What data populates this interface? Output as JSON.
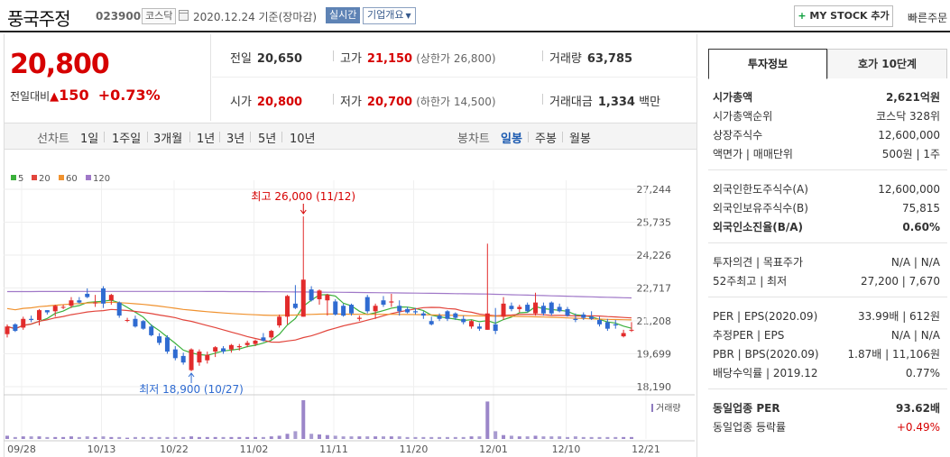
{
  "header": {
    "name": "풍국주정",
    "code": "023900",
    "market": "코스닥",
    "date": "2020.12.24 기준(장마감)",
    "realtime_label": "실시간",
    "company_label": "기업개요",
    "mystock_label": "MY STOCK 추가",
    "quick_order_label": "빠른주문"
  },
  "quote": {
    "price": "20,800",
    "change_label": "전일대비",
    "change": "150",
    "change_pct": "+0.73%",
    "prev_label": "전일",
    "prev": "20,650",
    "high_label": "고가",
    "high": "21,150",
    "upper_limit": "(상한가 26,800)",
    "volume_label": "거래량",
    "volume": "63,785",
    "open_label": "시가",
    "open": "20,800",
    "low_label": "저가",
    "low": "20,700",
    "lower_limit": "(하한가 14,500)",
    "amount_label": "거래대금",
    "amount": "1,334",
    "amount_unit": "백만"
  },
  "periods": {
    "line_label": "선차트",
    "items": [
      "1일",
      "1주일",
      "3개월",
      "1년",
      "3년",
      "5년",
      "10년"
    ],
    "candle_label": "봉차트",
    "candle_items": [
      "일봉",
      "주봉",
      "월봉"
    ],
    "active_candle": "일봉"
  },
  "chart_data": {
    "type": "candlestick",
    "legend": [
      "5",
      "20",
      "60",
      "120"
    ],
    "legend_colors": [
      "#3bb03b",
      "#e2453c",
      "#f0922f",
      "#a078c8"
    ],
    "y_ticks": [
      "27,244",
      "25,735",
      "24,226",
      "22,717",
      "21,208",
      "19,699",
      "18,190"
    ],
    "ylim": [
      18190,
      27244
    ],
    "x_ticks": [
      "09/28",
      "10/13",
      "10/22",
      "11/02",
      "11/11",
      "11/20",
      "12/01",
      "12/10",
      "12/21"
    ],
    "max_annotation": "최고 26,000 (11/12)",
    "min_annotation": "최저 18,900 (10/27)",
    "volume_label": "거래량",
    "up_color": "#e22b2b",
    "down_color": "#2f6bd1",
    "candles": [
      [
        20600,
        21050,
        20450,
        20950
      ],
      [
        21050,
        21100,
        20700,
        20750
      ],
      [
        20900,
        21400,
        20800,
        21300
      ],
      [
        21300,
        21450,
        21150,
        21250
      ],
      [
        21250,
        21750,
        21000,
        21700
      ],
      [
        21700,
        21700,
        21500,
        21600
      ],
      [
        21650,
        21950,
        21400,
        21900
      ],
      [
        21850,
        21950,
        21750,
        21850
      ],
      [
        21900,
        22300,
        21800,
        22150
      ],
      [
        22150,
        22300,
        22000,
        22050
      ],
      [
        22450,
        22700,
        22250,
        22300
      ],
      [
        22050,
        22400,
        21850,
        22050
      ],
      [
        22700,
        22800,
        21800,
        22000
      ],
      [
        22150,
        22450,
        21950,
        22400
      ],
      [
        22050,
        22100,
        21350,
        21450
      ],
      [
        21250,
        21350,
        21150,
        21250
      ],
      [
        21300,
        21450,
        20900,
        20950
      ],
      [
        21200,
        21250,
        20800,
        20850
      ],
      [
        20950,
        21050,
        20500,
        20550
      ],
      [
        20500,
        20650,
        20100,
        20200
      ],
      [
        20450,
        20550,
        19700,
        19800
      ],
      [
        19900,
        20050,
        19400,
        19500
      ],
      [
        19600,
        19750,
        19200,
        19300
      ],
      [
        18950,
        19950,
        18900,
        19900
      ],
      [
        19300,
        19900,
        19150,
        19800
      ],
      [
        19400,
        19800,
        19250,
        19650
      ],
      [
        19800,
        20050,
        19550,
        20000
      ],
      [
        19950,
        20050,
        19700,
        19800
      ],
      [
        19900,
        20150,
        19750,
        20100
      ],
      [
        20000,
        20150,
        19850,
        20050
      ],
      [
        20100,
        20300,
        20000,
        20200
      ],
      [
        20150,
        20350,
        20050,
        20300
      ],
      [
        20450,
        20650,
        20250,
        20300
      ],
      [
        20450,
        20800,
        20350,
        20750
      ],
      [
        21000,
        21500,
        20900,
        21400
      ],
      [
        21400,
        22400,
        21050,
        22350
      ],
      [
        22000,
        22850,
        21750,
        21800
      ],
      [
        21400,
        26000,
        21400,
        23100
      ],
      [
        22650,
        22800,
        22100,
        22150
      ],
      [
        22200,
        22650,
        21950,
        22600
      ],
      [
        22150,
        22450,
        21450,
        22400
      ],
      [
        22100,
        22200,
        21450,
        21500
      ],
      [
        21900,
        22000,
        21400,
        21450
      ],
      [
        21950,
        22000,
        21450,
        21550
      ],
      [
        21300,
        21450,
        21200,
        21350
      ],
      [
        22300,
        22400,
        21550,
        21650
      ],
      [
        21650,
        22000,
        21300,
        21900
      ],
      [
        22150,
        22350,
        21850,
        21950
      ],
      [
        22050,
        22450,
        21850,
        22100
      ],
      [
        21900,
        22150,
        21450,
        21650
      ],
      [
        21750,
        21850,
        21550,
        21600
      ],
      [
        21650,
        21800,
        21500,
        21600
      ],
      [
        21550,
        21650,
        21300,
        21450
      ],
      [
        21200,
        21400,
        21000,
        21050
      ],
      [
        21450,
        21550,
        21200,
        21300
      ],
      [
        21650,
        21700,
        21200,
        21300
      ],
      [
        21550,
        21600,
        21250,
        21350
      ],
      [
        21300,
        21450,
        21050,
        21150
      ],
      [
        20950,
        21250,
        20850,
        21200
      ],
      [
        20950,
        21100,
        20750,
        20850
      ],
      [
        20800,
        24750,
        20800,
        21550
      ],
      [
        21050,
        21800,
        20600,
        20750
      ],
      [
        21400,
        22300,
        21250,
        22000
      ],
      [
        21900,
        22050,
        21650,
        21750
      ],
      [
        21750,
        21950,
        21600,
        21850
      ],
      [
        21950,
        22050,
        21600,
        21650
      ],
      [
        21550,
        22500,
        21450,
        22050
      ],
      [
        21900,
        22050,
        21450,
        21550
      ],
      [
        22050,
        22100,
        21450,
        21550
      ],
      [
        21850,
        22000,
        21600,
        21650
      ],
      [
        21750,
        21850,
        21400,
        21450
      ],
      [
        21300,
        21550,
        21150,
        21250
      ],
      [
        21500,
        21600,
        21250,
        21350
      ],
      [
        21400,
        21650,
        21250,
        21300
      ],
      [
        21250,
        21400,
        20950,
        21050
      ],
      [
        21150,
        21300,
        20750,
        20850
      ],
      [
        21050,
        21250,
        20850,
        21000
      ],
      [
        20500,
        20800,
        20450,
        20650
      ],
      [
        20800,
        21150,
        20700,
        20800
      ]
    ],
    "volumes": [
      5,
      3,
      4,
      4,
      4,
      3,
      3,
      3,
      4,
      3,
      4,
      3,
      4,
      3,
      3,
      2,
      3,
      3,
      3,
      3,
      3,
      3,
      3,
      4,
      3,
      3,
      3,
      3,
      3,
      3,
      3,
      3,
      3,
      4,
      5,
      8,
      12,
      60,
      8,
      7,
      6,
      5,
      4,
      4,
      4,
      4,
      4,
      4,
      4,
      4,
      3,
      3,
      3,
      3,
      3,
      3,
      3,
      3,
      4,
      4,
      58,
      12,
      6,
      5,
      4,
      4,
      5,
      4,
      4,
      4,
      3,
      4,
      3,
      3,
      3,
      3,
      3,
      3,
      3
    ]
  },
  "info": {
    "tab_active": "투자정보",
    "tab_other": "호가 10단계",
    "rows1": [
      {
        "k": "시가총액",
        "v": "2,621억원"
      },
      {
        "k": "시가총액순위",
        "v": "코스닥 328위"
      },
      {
        "k": "상장주식수",
        "v": "12,600,000"
      },
      {
        "k": "액면가 | 매매단위",
        "v": "500원 | 1주"
      }
    ],
    "rows2": [
      {
        "k": "외국인한도주식수(A)",
        "v": "12,600,000"
      },
      {
        "k": "외국인보유주식수(B)",
        "v": "75,815"
      },
      {
        "k": "외국인소진율(B/A)",
        "v": "0.60%"
      }
    ],
    "rows3": [
      {
        "k": "투자의견 | 목표주가",
        "v": "N/A | N/A"
      },
      {
        "k": "52주최고 | 최저",
        "v": "27,200 | 7,670"
      }
    ],
    "rows4": [
      {
        "k": "PER | EPS(2020.09)",
        "v": "33.99배 | 612원"
      },
      {
        "k": "추정PER | EPS",
        "v": "N/A | N/A"
      },
      {
        "k": "PBR | BPS(2020.09)",
        "v": "1.87배 | 11,106원"
      },
      {
        "k": "배당수익률 | 2019.12",
        "v": "0.77%"
      }
    ],
    "rows5": [
      {
        "k": "동일업종 PER",
        "v": "93.62배"
      },
      {
        "k": "동일업종 등락률",
        "v": "+0.49%"
      }
    ]
  }
}
